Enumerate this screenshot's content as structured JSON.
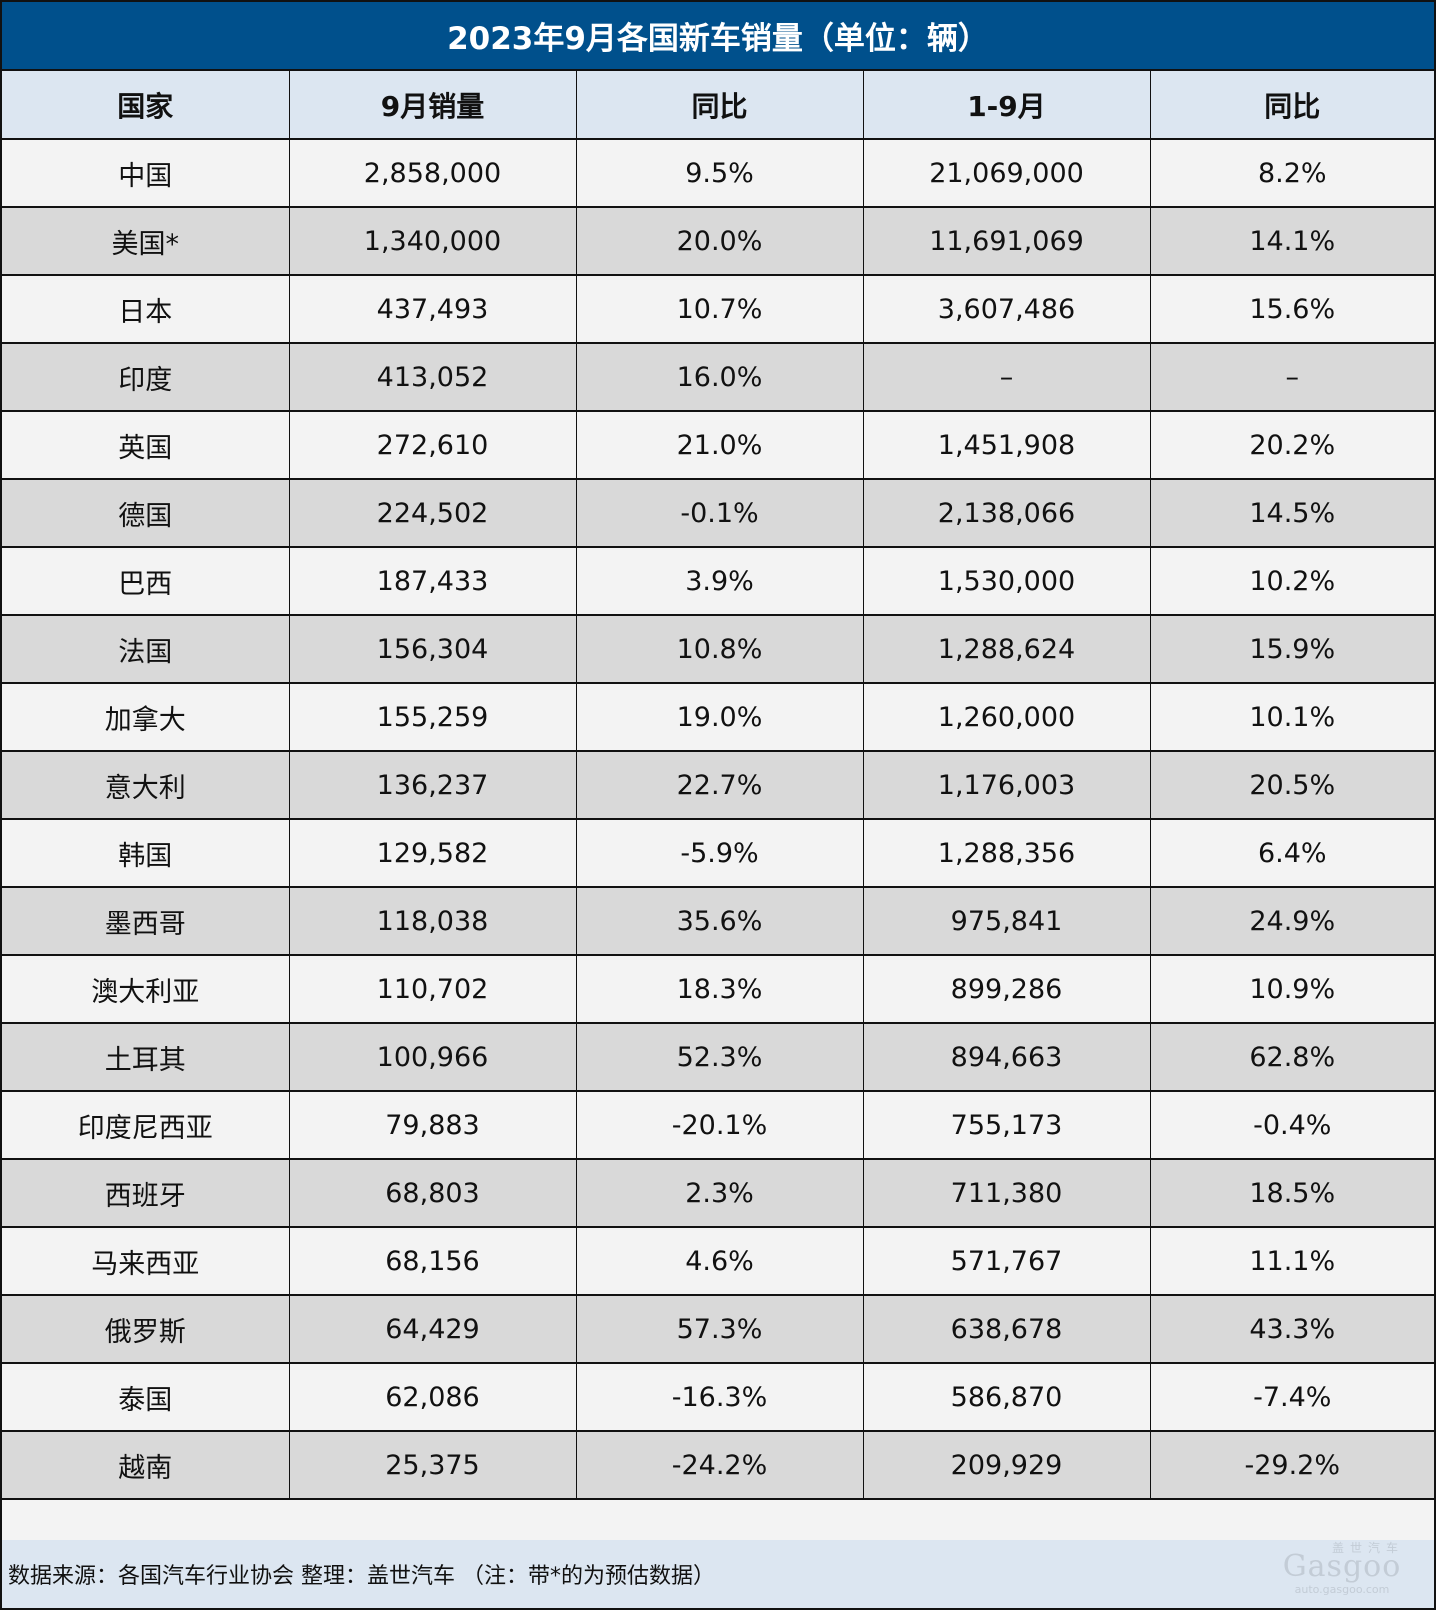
{
  "title": "2023年9月各国新车销量（单位：辆）",
  "colors": {
    "title_bg": "#00508c",
    "header_bg": "#dce6f1",
    "row_light": "#f3f3f3",
    "row_dark": "#d9d9d9",
    "positive": "#e0141e",
    "negative": "#10a04a"
  },
  "table": {
    "headers": [
      "国家",
      "9月销量",
      "同比",
      "1-9月",
      "同比"
    ],
    "rows": [
      {
        "country": "中国",
        "sep": "2,858,000",
        "sep_yoy": "9.5%",
        "ytd": "21,069,000",
        "ytd_yoy": "8.2%"
      },
      {
        "country": "美国*",
        "sep": "1,340,000",
        "sep_yoy": "20.0%",
        "ytd": "11,691,069",
        "ytd_yoy": "14.1%"
      },
      {
        "country": "日本",
        "sep": "437,493",
        "sep_yoy": "10.7%",
        "ytd": "3,607,486",
        "ytd_yoy": "15.6%"
      },
      {
        "country": "印度",
        "sep": "413,052",
        "sep_yoy": "16.0%",
        "ytd": "–",
        "ytd_yoy": "–"
      },
      {
        "country": "英国",
        "sep": "272,610",
        "sep_yoy": "21.0%",
        "ytd": "1,451,908",
        "ytd_yoy": "20.2%"
      },
      {
        "country": "德国",
        "sep": "224,502",
        "sep_yoy": "-0.1%",
        "ytd": "2,138,066",
        "ytd_yoy": "14.5%"
      },
      {
        "country": "巴西",
        "sep": "187,433",
        "sep_yoy": "3.9%",
        "ytd": "1,530,000",
        "ytd_yoy": "10.2%"
      },
      {
        "country": "法国",
        "sep": "156,304",
        "sep_yoy": "10.8%",
        "ytd": "1,288,624",
        "ytd_yoy": "15.9%"
      },
      {
        "country": "加拿大",
        "sep": "155,259",
        "sep_yoy": "19.0%",
        "ytd": "1,260,000",
        "ytd_yoy": "10.1%"
      },
      {
        "country": "意大利",
        "sep": "136,237",
        "sep_yoy": "22.7%",
        "ytd": "1,176,003",
        "ytd_yoy": "20.5%"
      },
      {
        "country": "韩国",
        "sep": "129,582",
        "sep_yoy": "-5.9%",
        "ytd": "1,288,356",
        "ytd_yoy": "6.4%"
      },
      {
        "country": "墨西哥",
        "sep": "118,038",
        "sep_yoy": "35.6%",
        "ytd": "975,841",
        "ytd_yoy": "24.9%"
      },
      {
        "country": "澳大利亚",
        "sep": "110,702",
        "sep_yoy": "18.3%",
        "ytd": "899,286",
        "ytd_yoy": "10.9%"
      },
      {
        "country": "土耳其",
        "sep": "100,966",
        "sep_yoy": "52.3%",
        "ytd": "894,663",
        "ytd_yoy": "62.8%"
      },
      {
        "country": "印度尼西亚",
        "sep": "79,883",
        "sep_yoy": "-20.1%",
        "ytd": "755,173",
        "ytd_yoy": "-0.4%"
      },
      {
        "country": "西班牙",
        "sep": "68,803",
        "sep_yoy": "2.3%",
        "ytd": "711,380",
        "ytd_yoy": "18.5%"
      },
      {
        "country": "马来西亚",
        "sep": "68,156",
        "sep_yoy": "4.6%",
        "ytd": "571,767",
        "ytd_yoy": "11.1%"
      },
      {
        "country": "俄罗斯",
        "sep": "64,429",
        "sep_yoy": "57.3%",
        "ytd": "638,678",
        "ytd_yoy": "43.3%"
      },
      {
        "country": "泰国",
        "sep": "62,086",
        "sep_yoy": "-16.3%",
        "ytd": "586,870",
        "ytd_yoy": "-7.4%"
      },
      {
        "country": "越南",
        "sep": "25,375",
        "sep_yoy": "-24.2%",
        "ytd": "209,929",
        "ytd_yoy": "-29.2%"
      }
    ]
  },
  "footer": {
    "note": "数据来源：各国汽车行业协会 整理：盖世汽车 （注：带*的为预估数据）"
  },
  "watermark": {
    "cn": "盖世汽车",
    "logo": "Gasgoo",
    "url": "auto.gasgoo.com"
  }
}
